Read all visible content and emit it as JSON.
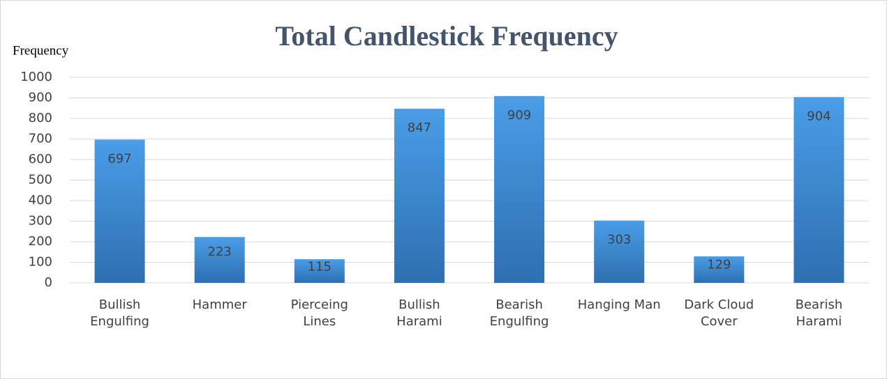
{
  "chart_data": {
    "type": "bar",
    "title": "Total Candlestick Frequency",
    "y_label": "Frequency",
    "categories": [
      "Bullish Engulfing",
      "Hammer",
      "Pierceing Lines",
      "Bullish Harami",
      "Bearish Engulfing",
      "Hanging Man",
      "Dark Cloud Cover",
      "Bearish Harami"
    ],
    "values": [
      697,
      223,
      115,
      847,
      909,
      303,
      129,
      904
    ],
    "color": "#3d8ad6",
    "ylim": [
      0,
      1000
    ],
    "yticks": [
      0,
      100,
      200,
      300,
      400,
      500,
      600,
      700,
      800,
      900,
      1000
    ],
    "grid": true
  }
}
